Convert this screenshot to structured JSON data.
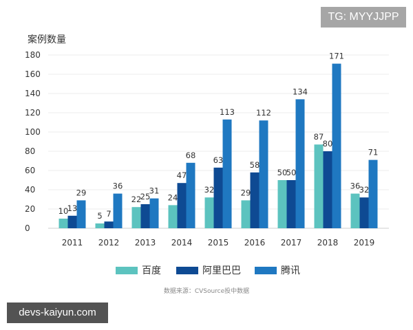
{
  "chart_data": {
    "type": "bar",
    "ylabel": "案例数量",
    "ylim": [
      0,
      180
    ],
    "yticks": [
      0,
      20,
      40,
      60,
      80,
      100,
      120,
      140,
      160,
      180
    ],
    "grid": true,
    "legend_position": "bottom",
    "categories": [
      "2011",
      "2012",
      "2013",
      "2014",
      "2015",
      "2016",
      "2017",
      "2018",
      "2019"
    ],
    "series": [
      {
        "name": "百度",
        "color": "#5cc3bf",
        "values": [
          10,
          5,
          22,
          24,
          32,
          29,
          50,
          87,
          36
        ]
      },
      {
        "name": "阿里巴巴",
        "color": "#0e4a93",
        "values": [
          13,
          7,
          25,
          47,
          63,
          58,
          50,
          80,
          32
        ]
      },
      {
        "name": "腾讯",
        "color": "#1f78c1",
        "values": [
          29,
          36,
          31,
          68,
          113,
          112,
          134,
          171,
          71
        ]
      }
    ],
    "source": "数据来源：CVSource投中数据"
  },
  "watermarks": {
    "top": "TG: MYYJJPP",
    "bottom": "devs-kaiyun.com"
  }
}
